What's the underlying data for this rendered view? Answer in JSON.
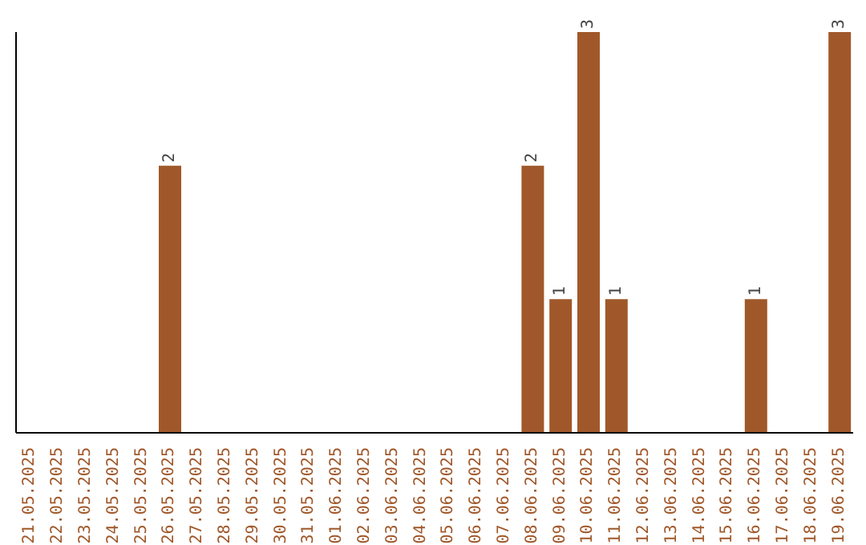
{
  "chart_data": {
    "type": "bar",
    "categories": [
      "21.05.2025",
      "22.05.2025",
      "23.05.2025",
      "24.05.2025",
      "25.05.2025",
      "26.05.2025",
      "27.05.2025",
      "28.05.2025",
      "29.05.2025",
      "30.05.2025",
      "31.05.2025",
      "01.06.2025",
      "02.06.2025",
      "03.06.2025",
      "04.06.2025",
      "05.06.2025",
      "06.06.2025",
      "07.06.2025",
      "08.06.2025",
      "09.06.2025",
      "10.06.2025",
      "11.06.2025",
      "12.06.2025",
      "13.06.2025",
      "14.06.2025",
      "15.06.2025",
      "16.06.2025",
      "17.06.2025",
      "18.06.2025",
      "19.06.2025"
    ],
    "values": [
      0,
      0,
      0,
      0,
      0,
      2,
      0,
      0,
      0,
      0,
      0,
      0,
      0,
      0,
      0,
      0,
      0,
      0,
      2,
      1,
      3,
      1,
      0,
      0,
      0,
      0,
      1,
      0,
      0,
      3
    ],
    "value_labels": [
      null,
      null,
      null,
      null,
      null,
      "2",
      null,
      null,
      null,
      null,
      null,
      null,
      null,
      null,
      null,
      null,
      null,
      null,
      "2",
      "1",
      "3",
      "1",
      null,
      null,
      null,
      null,
      "1",
      null,
      null,
      "3"
    ],
    "color": "#a0582a",
    "grid": false
  }
}
